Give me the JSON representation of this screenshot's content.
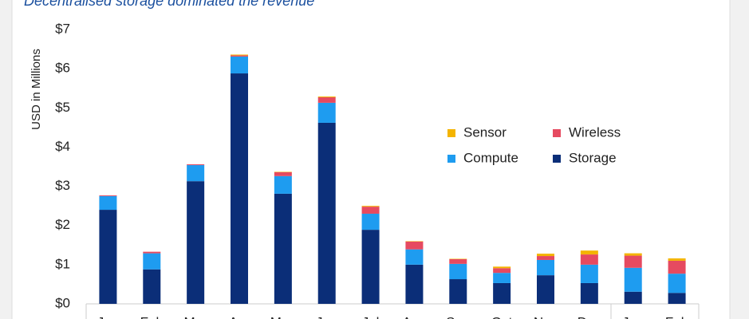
{
  "chart_data": {
    "type": "stacked-bar",
    "subtitle": "Decentralised storage dominated the revenue",
    "y_label": "USD in Millions",
    "categories": [
      "Jan",
      "Feb",
      "Mar",
      "Apr",
      "May",
      "Jun",
      "Jul",
      "Aug",
      "Sep",
      "Oct",
      "Nov",
      "Dec",
      "Jan",
      "Feb"
    ],
    "series": [
      {
        "name": "Storage",
        "color": "#0b2e78",
        "values": [
          2.4,
          0.88,
          3.13,
          5.88,
          2.81,
          4.62,
          1.89,
          1.0,
          0.63,
          0.53,
          0.73,
          0.53,
          0.31,
          0.28
        ]
      },
      {
        "name": "Compute",
        "color": "#1e9cf0",
        "values": [
          0.35,
          0.41,
          0.41,
          0.43,
          0.45,
          0.51,
          0.41,
          0.39,
          0.39,
          0.26,
          0.39,
          0.47,
          0.61,
          0.49
        ]
      },
      {
        "name": "Wireless",
        "color": "#e64a60",
        "values": [
          0.02,
          0.04,
          0.02,
          0.03,
          0.1,
          0.14,
          0.18,
          0.2,
          0.12,
          0.12,
          0.1,
          0.26,
          0.31,
          0.33
        ]
      },
      {
        "name": "Sensor",
        "color": "#f4b400",
        "values": [
          0,
          0,
          0,
          0.02,
          0.01,
          0.02,
          0.02,
          0.01,
          0.01,
          0.04,
          0.06,
          0.1,
          0.06,
          0.06
        ]
      }
    ],
    "ylim": [
      0,
      7
    ],
    "yticks": [
      {
        "value": 0,
        "label": "$0"
      },
      {
        "value": 1,
        "label": "$1"
      },
      {
        "value": 2,
        "label": "$2"
      },
      {
        "value": 3,
        "label": "$3"
      },
      {
        "value": 4,
        "label": "$4"
      },
      {
        "value": 5,
        "label": "$5"
      },
      {
        "value": 6,
        "label": "$6"
      },
      {
        "value": 7,
        "label": "$7"
      }
    ],
    "grid": false
  }
}
